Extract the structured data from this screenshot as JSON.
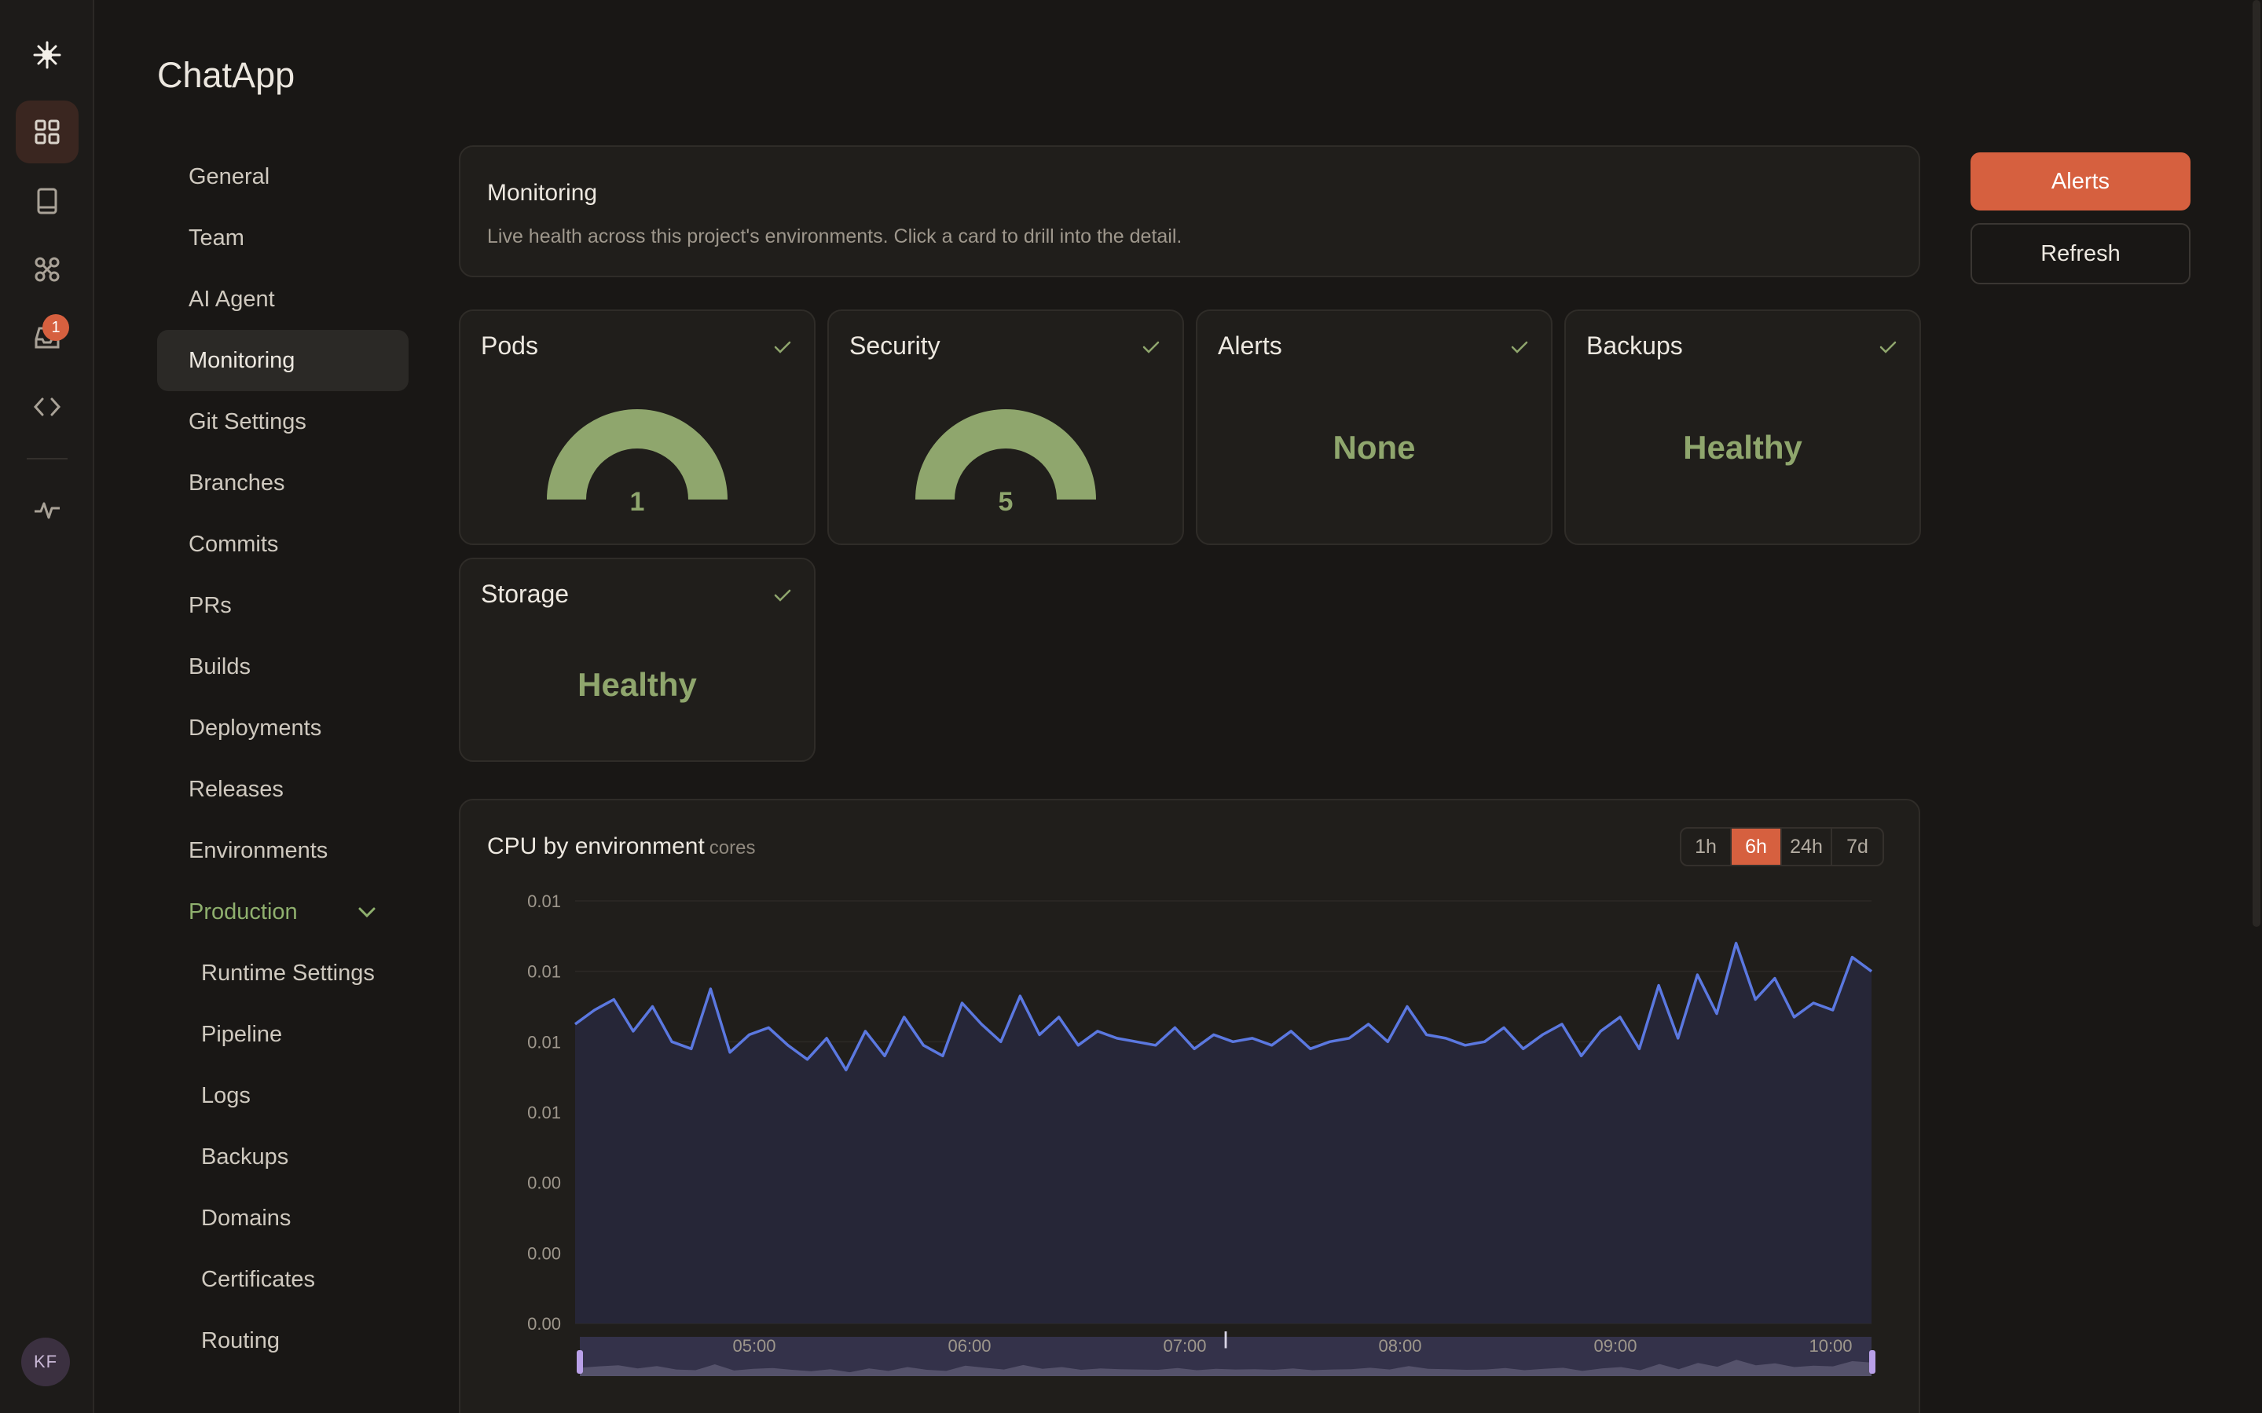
{
  "rail": {
    "items": [
      {
        "name": "logo-icon"
      },
      {
        "name": "grid-icon",
        "active": true
      },
      {
        "name": "book-icon"
      },
      {
        "name": "integrations-icon"
      },
      {
        "name": "inbox-icon",
        "badge": "1"
      },
      {
        "name": "code-icon"
      },
      {
        "name": "activity-icon"
      }
    ],
    "avatar": "KF"
  },
  "project": {
    "title": "ChatApp"
  },
  "nav": {
    "items": [
      "General",
      "Team",
      "AI Agent",
      "Monitoring",
      "Git Settings",
      "Branches",
      "Commits",
      "PRs",
      "Builds",
      "Deployments",
      "Releases",
      "Environments"
    ],
    "active": "Monitoring",
    "group": {
      "label": "Production",
      "children": [
        "Runtime Settings",
        "Pipeline",
        "Logs",
        "Backups",
        "Domains",
        "Certificates",
        "Routing"
      ]
    }
  },
  "actions": {
    "primary": "Alerts",
    "secondary": "Refresh"
  },
  "monitoring": {
    "title": "Monitoring",
    "description": "Live health across this project's environments. Click a card to drill into the detail."
  },
  "cards": [
    {
      "title": "Pods",
      "kind": "gauge",
      "value": "1",
      "status": "ok"
    },
    {
      "title": "Security",
      "kind": "gauge",
      "value": "5",
      "status": "ok"
    },
    {
      "title": "Alerts",
      "kind": "text",
      "value": "None",
      "status": "ok"
    },
    {
      "title": "Backups",
      "kind": "text",
      "value": "Healthy",
      "status": "ok"
    },
    {
      "title": "Storage",
      "kind": "text",
      "value": "Healthy",
      "status": "ok"
    }
  ],
  "cpu": {
    "title": "CPU by environment",
    "unit": "cores",
    "ranges": [
      "1h",
      "6h",
      "24h",
      "7d"
    ],
    "active_range": "6h"
  },
  "colors": {
    "accent": "#d6603f",
    "healthy": "#8fa66d",
    "line": "#5b78e0"
  },
  "chart_data": {
    "type": "area",
    "title": "CPU by environment",
    "ylabel": "cores",
    "y_ticks": [
      "0.01",
      "0.01",
      "0.01",
      "0.01",
      "0.00",
      "0.00",
      "0.00"
    ],
    "x_ticks": [
      "05:00",
      "06:00",
      "07:00",
      "08:00",
      "09:00",
      "10:00"
    ],
    "ylim": [
      0,
      0.012
    ],
    "grid": true,
    "legend": "none",
    "x": [
      "04:30",
      "04:35",
      "04:40",
      "04:45",
      "04:50",
      "04:55",
      "05:00",
      "05:05",
      "05:10",
      "05:15",
      "05:20",
      "05:25",
      "05:30",
      "05:35",
      "05:40",
      "05:45",
      "05:50",
      "05:55",
      "06:00",
      "06:05",
      "06:10",
      "06:15",
      "06:20",
      "06:25",
      "06:30",
      "06:35",
      "06:40",
      "06:45",
      "06:50",
      "06:55",
      "07:00",
      "07:05",
      "07:10",
      "07:15",
      "07:20",
      "07:25",
      "07:30",
      "07:35",
      "07:40",
      "07:45",
      "07:50",
      "07:55",
      "08:00",
      "08:05",
      "08:10",
      "08:15",
      "08:20",
      "08:25",
      "08:30",
      "08:35",
      "08:40",
      "08:45",
      "08:50",
      "08:55",
      "09:00",
      "09:05",
      "09:10",
      "09:15",
      "09:20",
      "09:25",
      "09:30",
      "09:35",
      "09:40",
      "09:45",
      "09:50",
      "09:55",
      "10:00",
      "10:05"
    ],
    "series": [
      {
        "values": [
          0.0085,
          0.0089,
          0.0092,
          0.0083,
          0.009,
          0.008,
          0.0078,
          0.0095,
          0.0077,
          0.0082,
          0.0084,
          0.0079,
          0.0075,
          0.0081,
          0.0072,
          0.0083,
          0.0076,
          0.0087,
          0.0079,
          0.0076,
          0.0091,
          0.0085,
          0.008,
          0.0093,
          0.0082,
          0.0087,
          0.0079,
          0.0083,
          0.0081,
          0.008,
          0.0079,
          0.0084,
          0.0078,
          0.0082,
          0.008,
          0.0081,
          0.0079,
          0.0083,
          0.0078,
          0.008,
          0.0081,
          0.0085,
          0.008,
          0.009,
          0.0082,
          0.0081,
          0.0079,
          0.008,
          0.0084,
          0.0078,
          0.0082,
          0.0085,
          0.0076,
          0.0083,
          0.0087,
          0.0078,
          0.0096,
          0.0081,
          0.0099,
          0.0088,
          0.0108,
          0.0092,
          0.0098,
          0.0087,
          0.0091,
          0.0089,
          0.0104,
          0.01
        ]
      }
    ]
  }
}
